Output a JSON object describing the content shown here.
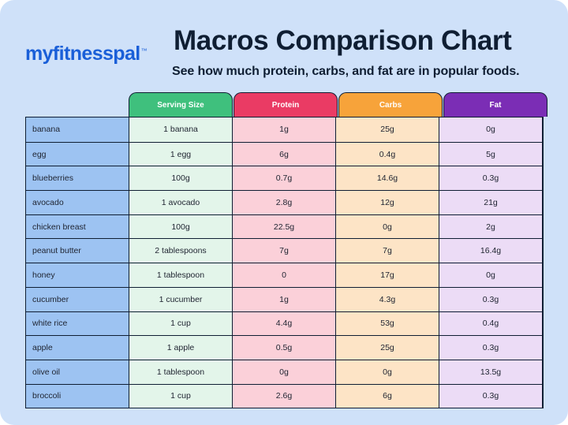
{
  "brand": {
    "logo_text": "myfitnesspal",
    "logo_mark": "™"
  },
  "header": {
    "title": "Macros Comparison Chart",
    "subtitle": "See how much protein, carbs, and fat are in popular foods."
  },
  "colors": {
    "serving": "#3fc07d",
    "protein": "#ea3b64",
    "carbs": "#f7a33a",
    "fat": "#7b2db5",
    "food_column": "#9dc3f2",
    "background": "#cfe1f9"
  },
  "table": {
    "columns": [
      "Serving Size",
      "Protein",
      "Carbs",
      "Fat"
    ],
    "rows": [
      {
        "food": "banana",
        "serving": "1 banana",
        "protein": "1g",
        "carbs": "25g",
        "fat": "0g"
      },
      {
        "food": "egg",
        "serving": "1 egg",
        "protein": "6g",
        "carbs": "0.4g",
        "fat": "5g"
      },
      {
        "food": "blueberries",
        "serving": "100g",
        "protein": "0.7g",
        "carbs": "14.6g",
        "fat": "0.3g"
      },
      {
        "food": "avocado",
        "serving": "1 avocado",
        "protein": "2.8g",
        "carbs": "12g",
        "fat": "21g"
      },
      {
        "food": "chicken breast",
        "serving": "100g",
        "protein": "22.5g",
        "carbs": "0g",
        "fat": "2g"
      },
      {
        "food": "peanut butter",
        "serving": "2 tablespoons",
        "protein": "7g",
        "carbs": "7g",
        "fat": "16.4g"
      },
      {
        "food": "honey",
        "serving": "1 tablespoon",
        "protein": "0",
        "carbs": "17g",
        "fat": "0g"
      },
      {
        "food": "cucumber",
        "serving": "1 cucumber",
        "protein": "1g",
        "carbs": "4.3g",
        "fat": "0.3g"
      },
      {
        "food": "white rice",
        "serving": "1 cup",
        "protein": "4.4g",
        "carbs": "53g",
        "fat": "0.4g"
      },
      {
        "food": "apple",
        "serving": "1 apple",
        "protein": "0.5g",
        "carbs": "25g",
        "fat": "0.3g"
      },
      {
        "food": "olive oil",
        "serving": "1 tablespoon",
        "protein": "0g",
        "carbs": "0g",
        "fat": "13.5g"
      },
      {
        "food": "broccoli",
        "serving": "1 cup",
        "protein": "2.6g",
        "carbs": "6g",
        "fat": "0.3g"
      }
    ]
  }
}
